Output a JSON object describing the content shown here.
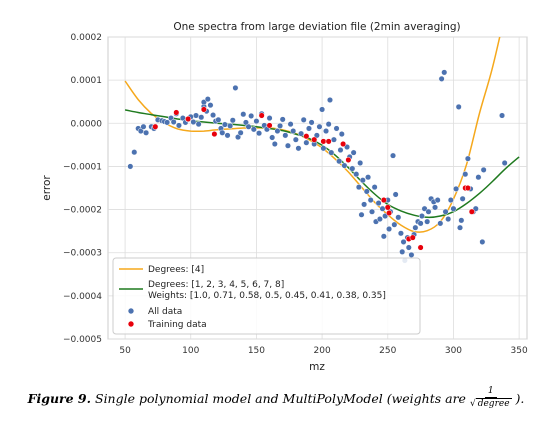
{
  "chart_data": {
    "type": "scatter",
    "title": "One spectra from large deviation file (2min averaging)",
    "xlabel": "mz",
    "ylabel": "error",
    "xlim": [
      37,
      356
    ],
    "ylim": [
      -0.0005,
      0.0002
    ],
    "x_ticks": [
      50,
      100,
      150,
      200,
      250,
      300,
      350
    ],
    "x_tick_labels": [
      "50",
      "100",
      "150",
      "200",
      "250",
      "300",
      "350"
    ],
    "y_ticks": [
      0.0002,
      0.0001,
      0.0,
      -0.0001,
      -0.0002,
      -0.0003,
      -0.0004,
      -0.0005
    ],
    "y_tick_labels": [
      "0.0002",
      "0.0001",
      "0.0000",
      "−0.0001",
      "−0.0002",
      "−0.0003",
      "−0.0004",
      "−0.0005"
    ],
    "grid": true,
    "legend_position": "lower-left",
    "series": [
      {
        "name": "Degrees: [4]",
        "kind": "line",
        "color": "#f5a81c",
        "x": [
          50,
          60,
          70,
          80,
          90,
          100,
          110,
          120,
          130,
          140,
          150,
          160,
          170,
          180,
          190,
          200,
          210,
          220,
          230,
          240,
          250,
          260,
          270,
          280,
          290,
          300,
          310,
          320,
          330,
          340
        ],
        "y": [
          9.8e-05,
          5.5e-05,
          2.3e-05,
          1e-06,
          -1.3e-05,
          -1.8e-05,
          -1.8e-05,
          -1.5e-05,
          -1.3e-05,
          -1.1e-05,
          -1.1e-05,
          -1.1e-05,
          -1.5e-05,
          -2.4e-05,
          -3.8e-05,
          -5.7e-05,
          -8.3e-05,
          -0.000113,
          -0.000148,
          -0.000183,
          -0.000212,
          -0.000236,
          -0.000251,
          -0.000249,
          -0.000228,
          -0.000176,
          -9.5e-05,
          2.5e-05,
          0.000132,
          0.000265
        ]
      },
      {
        "name": "Degrees: [1, 2, 3, 4, 5, 6, 7, 8]\nWeights: [1.0, 0.71, 0.58, 0.5, 0.45, 0.41, 0.38, 0.35]",
        "kind": "line",
        "color": "#1f7a1f",
        "x": [
          50,
          60,
          70,
          80,
          90,
          100,
          110,
          120,
          130,
          140,
          150,
          160,
          170,
          180,
          190,
          200,
          210,
          220,
          230,
          240,
          250,
          260,
          270,
          280,
          290,
          300,
          310,
          320,
          330,
          340,
          350
        ],
        "y": [
          3.1e-05,
          2.5e-05,
          2e-05,
          1.5e-05,
          1e-05,
          6e-06,
          3e-06,
          0.0,
          -2e-06,
          -5e-06,
          -8e-06,
          -1.2e-05,
          -1.7e-05,
          -2.5e-05,
          -3.5e-05,
          -5.1e-05,
          -7.4e-05,
          -0.000103,
          -0.000135,
          -0.000164,
          -0.000188,
          -0.000203,
          -0.000213,
          -0.000218,
          -0.000215,
          -0.000205,
          -0.000186,
          -0.000162,
          -0.000134,
          -0.000104,
          -7.8e-05
        ]
      },
      {
        "name": "All data",
        "kind": "scatter",
        "color": "#4c72b0",
        "points": [
          [
            54,
            -0.0001
          ],
          [
            57,
            -6.7e-05
          ],
          [
            60,
            -1.2e-05
          ],
          [
            62,
            -1.8e-05
          ],
          [
            64,
            -8e-06
          ],
          [
            66,
            -2.2e-05
          ],
          [
            70,
            -8e-06
          ],
          [
            72,
            -1.2e-05
          ],
          [
            75,
            8e-06
          ],
          [
            78,
            6e-06
          ],
          [
            80,
            4e-06
          ],
          [
            82,
            2e-06
          ],
          [
            85,
            1.2e-05
          ],
          [
            87,
            3e-06
          ],
          [
            89,
            2.2e-05
          ],
          [
            91,
            -5e-06
          ],
          [
            94,
            1.2e-05
          ],
          [
            96,
            2e-06
          ],
          [
            98,
            9e-06
          ],
          [
            100,
            1.5e-05
          ],
          [
            102,
            3e-06
          ],
          [
            104,
            1.8e-05
          ],
          [
            106,
            -2e-06
          ],
          [
            108,
            1.4e-05
          ],
          [
            110,
            3.9e-05
          ],
          [
            110,
            4.9e-05
          ],
          [
            112,
            2.8e-05
          ],
          [
            113,
            5.6e-05
          ],
          [
            115,
            4.2e-05
          ],
          [
            117,
            1.9e-05
          ],
          [
            119,
            5e-06
          ],
          [
            121,
            8e-06
          ],
          [
            123,
            -1.2e-05
          ],
          [
            124,
            -2.2e-05
          ],
          [
            126,
            -3e-06
          ],
          [
            128,
            -2.8e-05
          ],
          [
            130,
            -6e-06
          ],
          [
            132,
            7e-06
          ],
          [
            134,
            8.2e-05
          ],
          [
            136,
            -3.2e-05
          ],
          [
            138,
            -2.2e-05
          ],
          [
            140,
            2.1e-05
          ],
          [
            142,
            2e-06
          ],
          [
            144,
            -8e-06
          ],
          [
            146,
            1.7e-05
          ],
          [
            148,
            -1.4e-05
          ],
          [
            150,
            5e-06
          ],
          [
            152,
            -2.3e-05
          ],
          [
            154,
            2.2e-05
          ],
          [
            156,
            -5e-06
          ],
          [
            158,
            -1.4e-05
          ],
          [
            160,
            1.2e-05
          ],
          [
            162,
            -3.3e-05
          ],
          [
            164,
            -4.8e-05
          ],
          [
            166,
            -1.8e-05
          ],
          [
            168,
            -6e-06
          ],
          [
            170,
            9e-06
          ],
          [
            172,
            -2.8e-05
          ],
          [
            174,
            -5.2e-05
          ],
          [
            176,
            -2e-06
          ],
          [
            178,
            -1.8e-05
          ],
          [
            180,
            -3.8e-05
          ],
          [
            182,
            -5.8e-05
          ],
          [
            184,
            -2.4e-05
          ],
          [
            186,
            8e-06
          ],
          [
            188,
            -4.5e-05
          ],
          [
            190,
            -1.2e-05
          ],
          [
            192,
            2e-06
          ],
          [
            194,
            -4.8e-05
          ],
          [
            196,
            -2.8e-05
          ],
          [
            198,
            -8e-06
          ],
          [
            200,
            3.2e-05
          ],
          [
            201,
            -5.8e-05
          ],
          [
            203,
            -1.8e-05
          ],
          [
            205,
            -2e-06
          ],
          [
            206,
            5.4e-05
          ],
          [
            207,
            -6.8e-05
          ],
          [
            209,
            -3.8e-05
          ],
          [
            211,
            -1.2e-05
          ],
          [
            213,
            -8.8e-05
          ],
          [
            214,
            -6.2e-05
          ],
          [
            215,
            -2.5e-05
          ],
          [
            217,
            -9.8e-05
          ],
          [
            219,
            -5.5e-05
          ],
          [
            221,
            -7.8e-05
          ],
          [
            223,
            -0.000105
          ],
          [
            224,
            -6.8e-05
          ],
          [
            226,
            -0.000118
          ],
          [
            228,
            -0.000148
          ],
          [
            229,
            -9.2e-05
          ],
          [
            230,
            -0.000212
          ],
          [
            231,
            -0.000132
          ],
          [
            232,
            -0.000188
          ],
          [
            234,
            -0.000158
          ],
          [
            235,
            -0.000125
          ],
          [
            237,
            -0.000178
          ],
          [
            238,
            -0.000205
          ],
          [
            240,
            -0.000148
          ],
          [
            241,
            -0.000228
          ],
          [
            243,
            -0.000185
          ],
          [
            244,
            -0.000222
          ],
          [
            246,
            -0.000198
          ],
          [
            247,
            -0.000262
          ],
          [
            248,
            -0.000215
          ],
          [
            250,
            -0.000178
          ],
          [
            251,
            -0.000245
          ],
          [
            252,
            -0.000205
          ],
          [
            254,
            -7.5e-05
          ],
          [
            255,
            -0.000235
          ],
          [
            256,
            -0.000165
          ],
          [
            258,
            -0.000218
          ],
          [
            260,
            -0.000255
          ],
          [
            261,
            -0.000298
          ],
          [
            262,
            -0.000275
          ],
          [
            263,
            -0.000318
          ],
          [
            265,
            -0.000265
          ],
          [
            266,
            -0.000288
          ],
          [
            268,
            -0.000305
          ],
          [
            270,
            -0.000258
          ],
          [
            271,
            -0.000242
          ],
          [
            273,
            -0.000228
          ],
          [
            275,
            -0.000232
          ],
          [
            276,
            -0.000215
          ],
          [
            278,
            -0.000198
          ],
          [
            280,
            -0.000228
          ],
          [
            281,
            -0.000205
          ],
          [
            283,
            -0.000175
          ],
          [
            285,
            -0.000182
          ],
          [
            286,
            -0.000195
          ],
          [
            288,
            -0.000178
          ],
          [
            290,
            -0.000232
          ],
          [
            291,
            0.000103
          ],
          [
            293,
            0.000118
          ],
          [
            294,
            -0.000205
          ],
          [
            296,
            -0.000222
          ],
          [
            298,
            -0.000178
          ],
          [
            300,
            -0.000198
          ],
          [
            302,
            -0.000152
          ],
          [
            304,
            3.8e-05
          ],
          [
            305,
            -0.000242
          ],
          [
            306,
            -0.000225
          ],
          [
            307,
            -0.000175
          ],
          [
            309,
            -0.000118
          ],
          [
            311,
            -8.2e-05
          ],
          [
            313,
            -0.000152
          ],
          [
            315,
            -0.000205
          ],
          [
            317,
            -0.000198
          ],
          [
            319,
            -0.000125
          ],
          [
            322,
            -0.000275
          ],
          [
            323,
            -0.000108
          ],
          [
            337,
            1.8e-05
          ],
          [
            339,
            -9.2e-05
          ]
        ]
      },
      {
        "name": "Training data",
        "kind": "scatter",
        "color": "#e8000b",
        "points": [
          [
            73,
            -8e-06
          ],
          [
            89,
            2.5e-05
          ],
          [
            98,
            1e-05
          ],
          [
            110,
            3.2e-05
          ],
          [
            118,
            -2.5e-05
          ],
          [
            154,
            1.8e-05
          ],
          [
            160,
            -5e-06
          ],
          [
            188,
            -3e-05
          ],
          [
            194,
            -3.8e-05
          ],
          [
            201,
            -4.2e-05
          ],
          [
            205,
            -4.2e-05
          ],
          [
            216,
            -4.8e-05
          ],
          [
            220,
            -8.5e-05
          ],
          [
            247,
            -0.000178
          ],
          [
            250,
            -0.000195
          ],
          [
            251,
            -0.000208
          ],
          [
            266,
            -0.000268
          ],
          [
            269,
            -0.000265
          ],
          [
            275,
            -0.000288
          ],
          [
            309,
            -0.00015
          ],
          [
            311,
            -0.00015
          ],
          [
            314,
            -0.000205
          ]
        ]
      }
    ]
  },
  "legend": {
    "items": [
      {
        "line1": "Degrees: [4]",
        "line2": ""
      },
      {
        "line1": "Degrees: [1, 2, 3, 4, 5, 6, 7, 8]",
        "line2": "Weights: [1.0, 0.71, 0.58, 0.5, 0.45, 0.41, 0.38, 0.35]"
      },
      {
        "line1": "All data",
        "line2": ""
      },
      {
        "line1": "Training data",
        "line2": ""
      }
    ]
  },
  "caption": {
    "label": "Figure 9.",
    "text": "Single polynomial model and MultiPolyModel (weights are",
    "frac_num": "1",
    "frac_den": "degree",
    "tail": ")."
  }
}
